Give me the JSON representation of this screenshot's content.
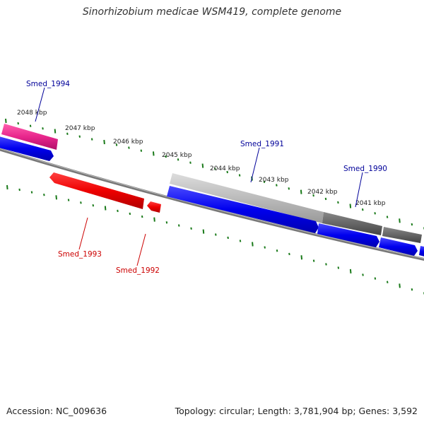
{
  "title": "Sinorhizobium medicae WSM419, complete genome",
  "footer": {
    "accession": "Accession: NC_009636",
    "summary": "Topology: circular; Length: 3,781,904 bp; Genes: 3,592"
  },
  "colors": {
    "tick": "#1a7a1a",
    "backbone": "#777777",
    "forward_gene": "#ee0000",
    "reverse_gene": "#0000ee",
    "highlight_gene": "#e8268c",
    "rna_light": "#bbbbbb",
    "rna_dark": "#666666",
    "label_forward": "#cc0000",
    "label_reverse": "#000099"
  },
  "kbp_labels": [
    "2048 kbp",
    "2047 kbp",
    "2046 kbp",
    "2045 kbp",
    "2044 kbp",
    "2043 kbp",
    "2042 kbp",
    "2041 kbp"
  ],
  "gene_labels": {
    "smed_1994": "Smed_1994",
    "smed_1991": "Smed_1991",
    "smed_1990": "Smed_1990",
    "smed_1993": "Smed_1993",
    "smed_1992": "Smed_1992"
  }
}
